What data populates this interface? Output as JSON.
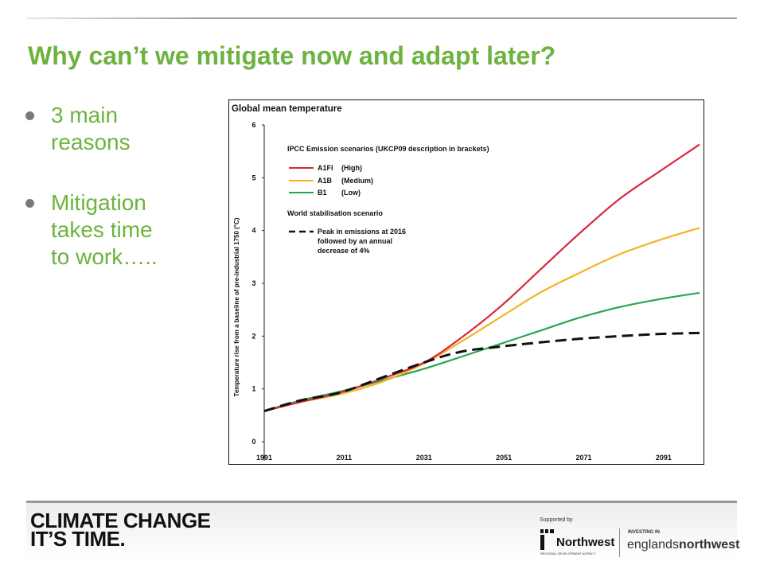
{
  "slide": {
    "title": "Why can’t we mitigate now and adapt later?",
    "bullets": [
      {
        "text": "3 main reasons",
        "lines": [
          "3 main",
          "reasons"
        ]
      },
      {
        "text": "Mitigation takes time to work…..",
        "lines": [
          "Mitigation",
          "takes time",
          "to work….."
        ]
      }
    ]
  },
  "chart_data": {
    "type": "line",
    "title": "Global mean temperature",
    "ylabel": "Temperature rise from a baseline of pre-industrial 1750 (°C)",
    "xlabel": "",
    "xlim": [
      1991,
      2100
    ],
    "ylim": [
      0,
      6
    ],
    "xticks": [
      "1991",
      "2011",
      "2031",
      "2051",
      "2071",
      "2091"
    ],
    "yticks": [
      "0",
      "1",
      "2",
      "3",
      "4",
      "5",
      "6"
    ],
    "legend": {
      "heading": "IPCC Emission scenarios (UKCP09 description in brackets)",
      "items": [
        {
          "code": "A1FI",
          "desc": "(High)"
        },
        {
          "code": "A1B",
          "desc": "(Medium)"
        },
        {
          "code": "B1",
          "desc": "(Low)"
        }
      ],
      "stab_heading": "World stabilisation scenario",
      "stab_lines": [
        "Peak in emissions at 2016",
        "followed by an annual",
        "decrease of 4%"
      ],
      "position": "top-left"
    },
    "series": [
      {
        "name": "A1FI (High)",
        "color": "#d7283c",
        "style": "solid",
        "x": [
          1991,
          2000,
          2010,
          2020,
          2031,
          2040,
          2050,
          2060,
          2070,
          2080,
          2090,
          2100
        ],
        "y": [
          0.58,
          0.75,
          0.93,
          1.18,
          1.5,
          1.95,
          2.55,
          3.25,
          3.95,
          4.6,
          5.12,
          5.63
        ]
      },
      {
        "name": "A1B (Medium)",
        "color": "#f5b324",
        "style": "solid",
        "x": [
          1991,
          2000,
          2010,
          2020,
          2031,
          2040,
          2050,
          2060,
          2070,
          2080,
          2090,
          2100
        ],
        "y": [
          0.58,
          0.75,
          0.9,
          1.12,
          1.48,
          1.88,
          2.35,
          2.82,
          3.2,
          3.55,
          3.82,
          4.05
        ]
      },
      {
        "name": "B1 (Low)",
        "color": "#2aa552",
        "style": "solid",
        "x": [
          1991,
          2000,
          2010,
          2020,
          2031,
          2040,
          2050,
          2060,
          2070,
          2080,
          2090,
          2100
        ],
        "y": [
          0.58,
          0.78,
          0.95,
          1.15,
          1.38,
          1.6,
          1.85,
          2.1,
          2.35,
          2.55,
          2.7,
          2.82
        ]
      },
      {
        "name": "Peak in emissions at 2016 followed by an annual decrease of 4%",
        "color": "#111111",
        "style": "dashed",
        "x": [
          1991,
          2000,
          2010,
          2020,
          2031,
          2040,
          2050,
          2060,
          2070,
          2080,
          2090,
          2100
        ],
        "y": [
          0.58,
          0.78,
          0.93,
          1.2,
          1.5,
          1.7,
          1.8,
          1.88,
          1.95,
          2.0,
          2.04,
          2.06
        ]
      }
    ]
  },
  "footer": {
    "logo_lines": [
      "CLIMATE CHANGE",
      "IT’S TIME."
    ],
    "supported_by": "Supported by",
    "nw_name": "Northwest",
    "nw_agency": "REGIONAL DEVELOPMENT AGENCY",
    "investing": "INVESTING IN",
    "eng_part1": "englands",
    "eng_part2": "northwest"
  }
}
